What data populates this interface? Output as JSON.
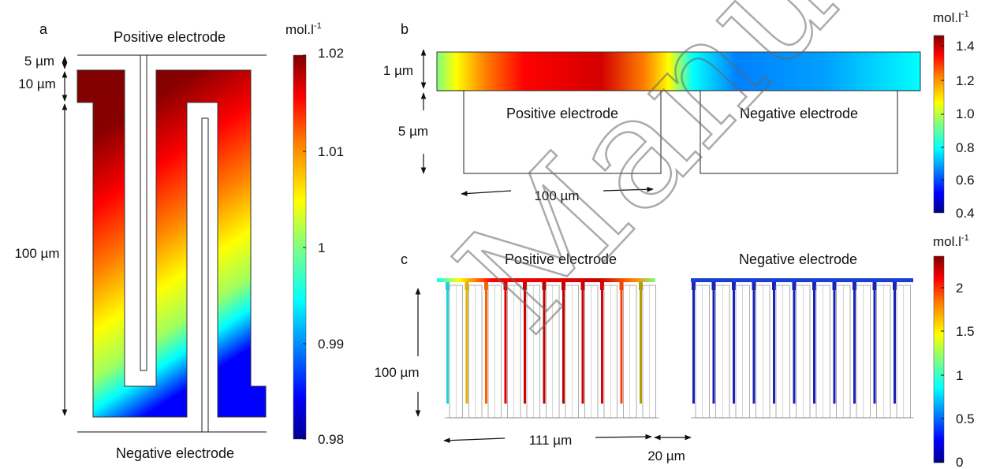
{
  "panel_a": {
    "label": "a",
    "top_label": "Positive electrode",
    "bottom_label": "Negative electrode",
    "dim_5": "5 µm",
    "dim_10": "10 µm",
    "dim_100": "100 µm",
    "colorbar_unit": "mol.l",
    "colorbar_exp": "-1",
    "ticks": [
      "1.02",
      "1.01",
      "1",
      "0.99",
      "0.98"
    ]
  },
  "panel_b": {
    "label": "b",
    "dim_1": "1 µm",
    "dim_5": "5 µm",
    "dim_100": "100 µm",
    "pos_label": "Positive electrode",
    "neg_label": "Negative electrode",
    "colorbar_unit": "mol.l",
    "colorbar_exp": "-1",
    "ticks": [
      "1.4",
      "1.2",
      "1.0",
      "0.8",
      "0.6",
      "0.4"
    ]
  },
  "panel_c": {
    "label": "c",
    "pos_label": "Positive electrode",
    "neg_label": "Negative electrode",
    "dim_100": "100 µm",
    "dim_111": "111 µm",
    "dim_20": "20 µm",
    "colorbar_unit": "mol.l",
    "colorbar_exp": "-1",
    "ticks": [
      "2",
      "1.5",
      "1",
      "0.5",
      "0"
    ]
  },
  "watermark": "Manuscript",
  "colors": {
    "jet": [
      "#00008f",
      "#0000ff",
      "#0080ff",
      "#00ffff",
      "#80ff80",
      "#ffff00",
      "#ff8000",
      "#ff0000",
      "#800000"
    ]
  }
}
